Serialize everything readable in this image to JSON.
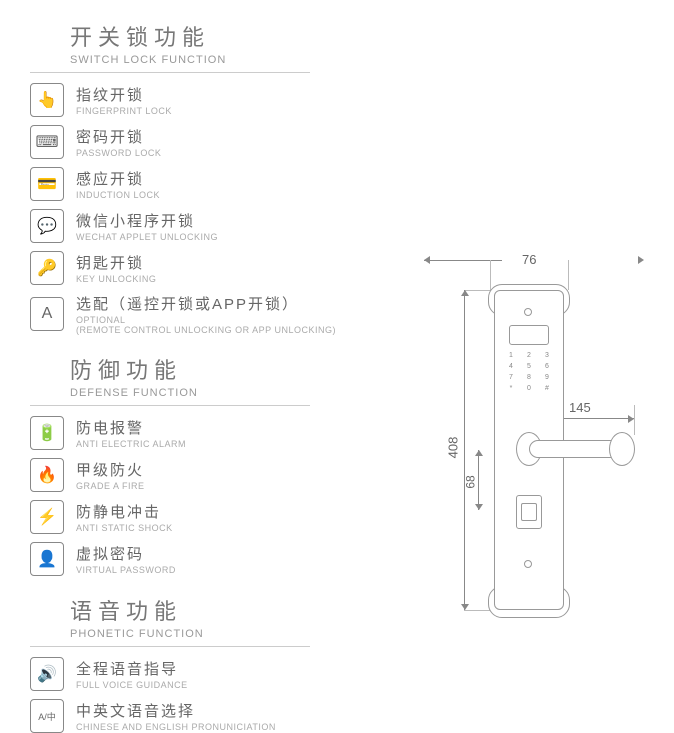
{
  "colors": {
    "text": "#666",
    "text_light": "#999",
    "border": "#888",
    "rule": "#ccc",
    "bg": "#ffffff"
  },
  "fonts": {
    "title_cn_size": 22,
    "title_en_size": 11,
    "feature_cn_size": 15,
    "feature_en_size": 9,
    "dim_size": 13
  },
  "sections": [
    {
      "title_cn": "开关锁功能",
      "title_en": "SWITCH LOCK FUNCTION",
      "icon": "🔒",
      "items": [
        {
          "icon": "👆",
          "cn": "指纹开锁",
          "en": "FINGERPRINT LOCK"
        },
        {
          "icon": "⌨",
          "cn": "密码开锁",
          "en": "PASSWORD LOCK"
        },
        {
          "icon": "💳",
          "cn": "感应开锁",
          "en": "INDUCTION LOCK"
        },
        {
          "icon": "💬",
          "cn": "微信小程序开锁",
          "en": "WECHAT APPLET UNLOCKING"
        },
        {
          "icon": "🔑",
          "cn": "钥匙开锁",
          "en": "KEY UNLOCKING"
        },
        {
          "icon": "A",
          "cn": "选配（遥控开锁或APP开锁）",
          "en": "OPTIONAL\n(REMOTE CONTROL UNLOCKING OR APP UNLOCKING)"
        }
      ]
    },
    {
      "title_cn": "防御功能",
      "title_en": "DEFENSE FUNCTION",
      "items": [
        {
          "icon": "🔋",
          "cn": "防电报警",
          "en": "ANTI ELECTRIC ALARM"
        },
        {
          "icon": "🔥",
          "cn": "甲级防火",
          "en": "GRADE A FIRE"
        },
        {
          "icon": "⚡",
          "cn": "防静电冲击",
          "en": "ANTI STATIC SHOCK"
        },
        {
          "icon": "👤",
          "cn": "虚拟密码",
          "en": "VIRTUAL PASSWORD"
        }
      ]
    },
    {
      "title_cn": "语音功能",
      "title_en": "PHONETIC FUNCTION",
      "items": [
        {
          "icon": "🔊",
          "cn": "全程语音指导",
          "en": "FULL VOICE GUIDANCE"
        },
        {
          "icon": "A/中",
          "cn": "中英文语音选择",
          "en": "CHINESE AND ENGLISH PRONUNICIATION"
        }
      ]
    }
  ],
  "diagram": {
    "type": "technical-drawing",
    "dimensions": {
      "width_mm": 76,
      "height_mm": 408,
      "handle_length_mm": 145,
      "handle_offset_mm": 68
    },
    "keypad_keys": [
      "1",
      "2",
      "3",
      "4",
      "5",
      "6",
      "7",
      "8",
      "9",
      "*",
      "0",
      "#"
    ],
    "line_color": "#888",
    "line_width": 1.5
  }
}
